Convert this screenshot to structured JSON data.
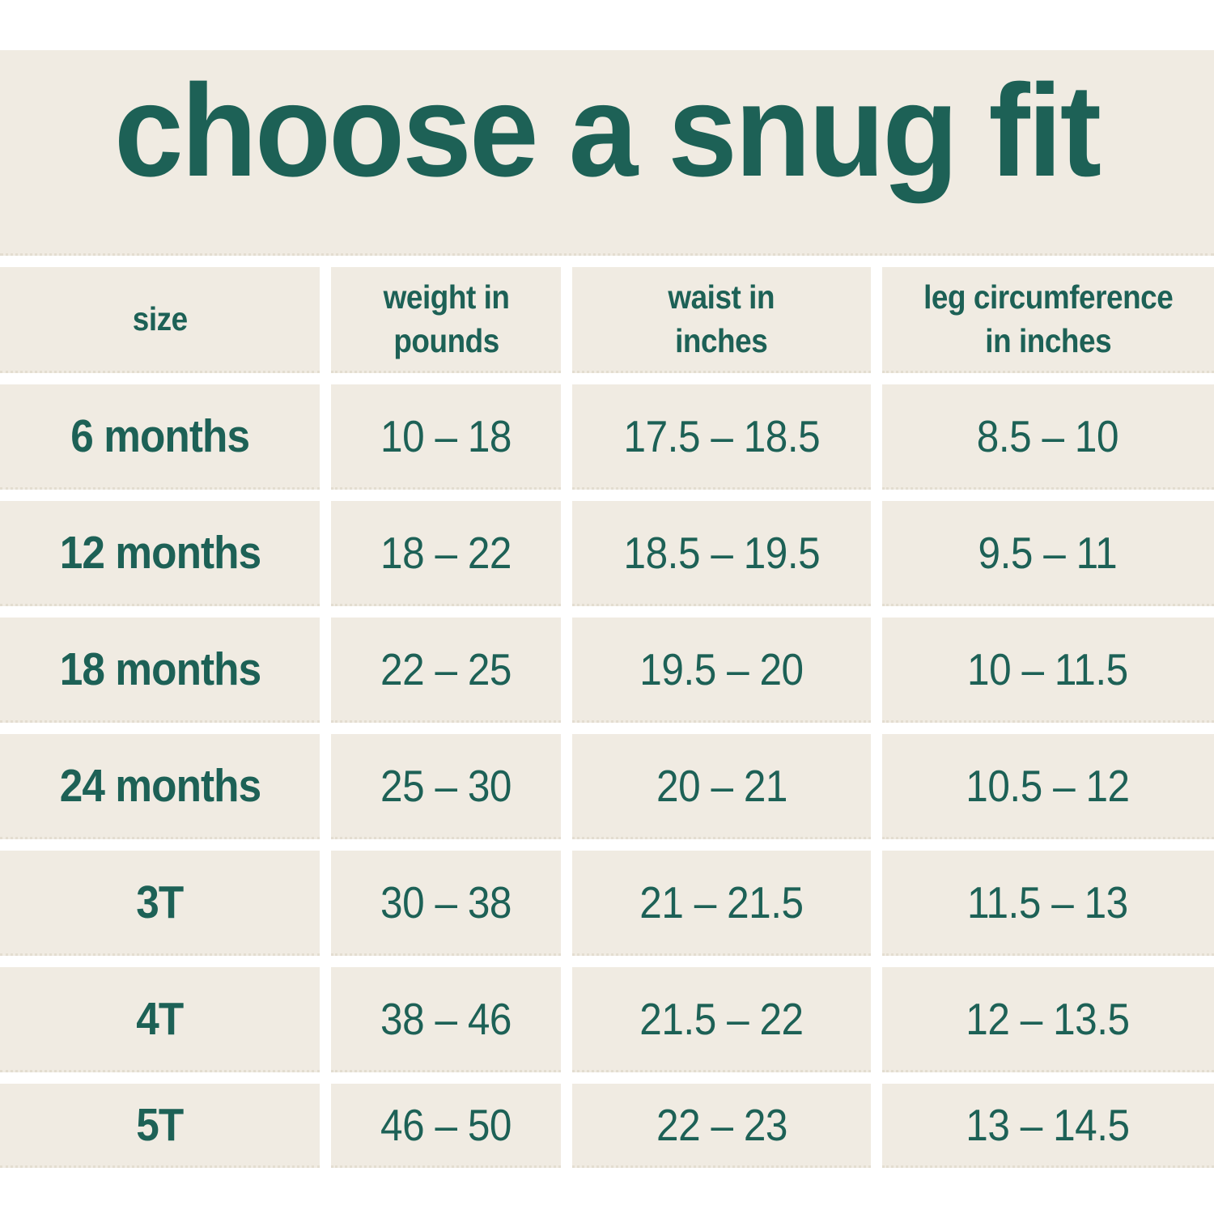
{
  "title": "choose a snug fit",
  "colors": {
    "accent_teal": "#1d6156",
    "surface_cream": "#f0ebe2",
    "gap_white": "#ffffff",
    "dotted_line": "#e3ddd0"
  },
  "table": {
    "columns": [
      {
        "key": "size",
        "label": "size"
      },
      {
        "key": "weight",
        "label": "weight in\npounds"
      },
      {
        "key": "waist",
        "label": "waist in\ninches"
      },
      {
        "key": "leg",
        "label": "leg circumference\nin inches"
      }
    ]
  },
  "chart_data": {
    "type": "table",
    "title": "choose a snug fit",
    "columns": [
      "size",
      "weight in pounds",
      "waist in inches",
      "leg circumference in inches"
    ],
    "rows": [
      [
        "6 months",
        "10 – 18",
        "17.5 – 18.5",
        "8.5 – 10"
      ],
      [
        "12 months",
        "18 – 22",
        "18.5 – 19.5",
        "9.5 – 11"
      ],
      [
        "18 months",
        "22 – 25",
        "19.5 – 20",
        "10 – 11.5"
      ],
      [
        "24 months",
        "25 – 30",
        "20 – 21",
        "10.5 – 12"
      ],
      [
        "3T",
        "30 – 38",
        "21 – 21.5",
        "11.5 – 13"
      ],
      [
        "4T",
        "38 – 46",
        "21.5 – 22",
        "12 – 13.5"
      ],
      [
        "5T",
        "46 – 50",
        "22 – 23",
        "13 – 14.5"
      ]
    ]
  }
}
